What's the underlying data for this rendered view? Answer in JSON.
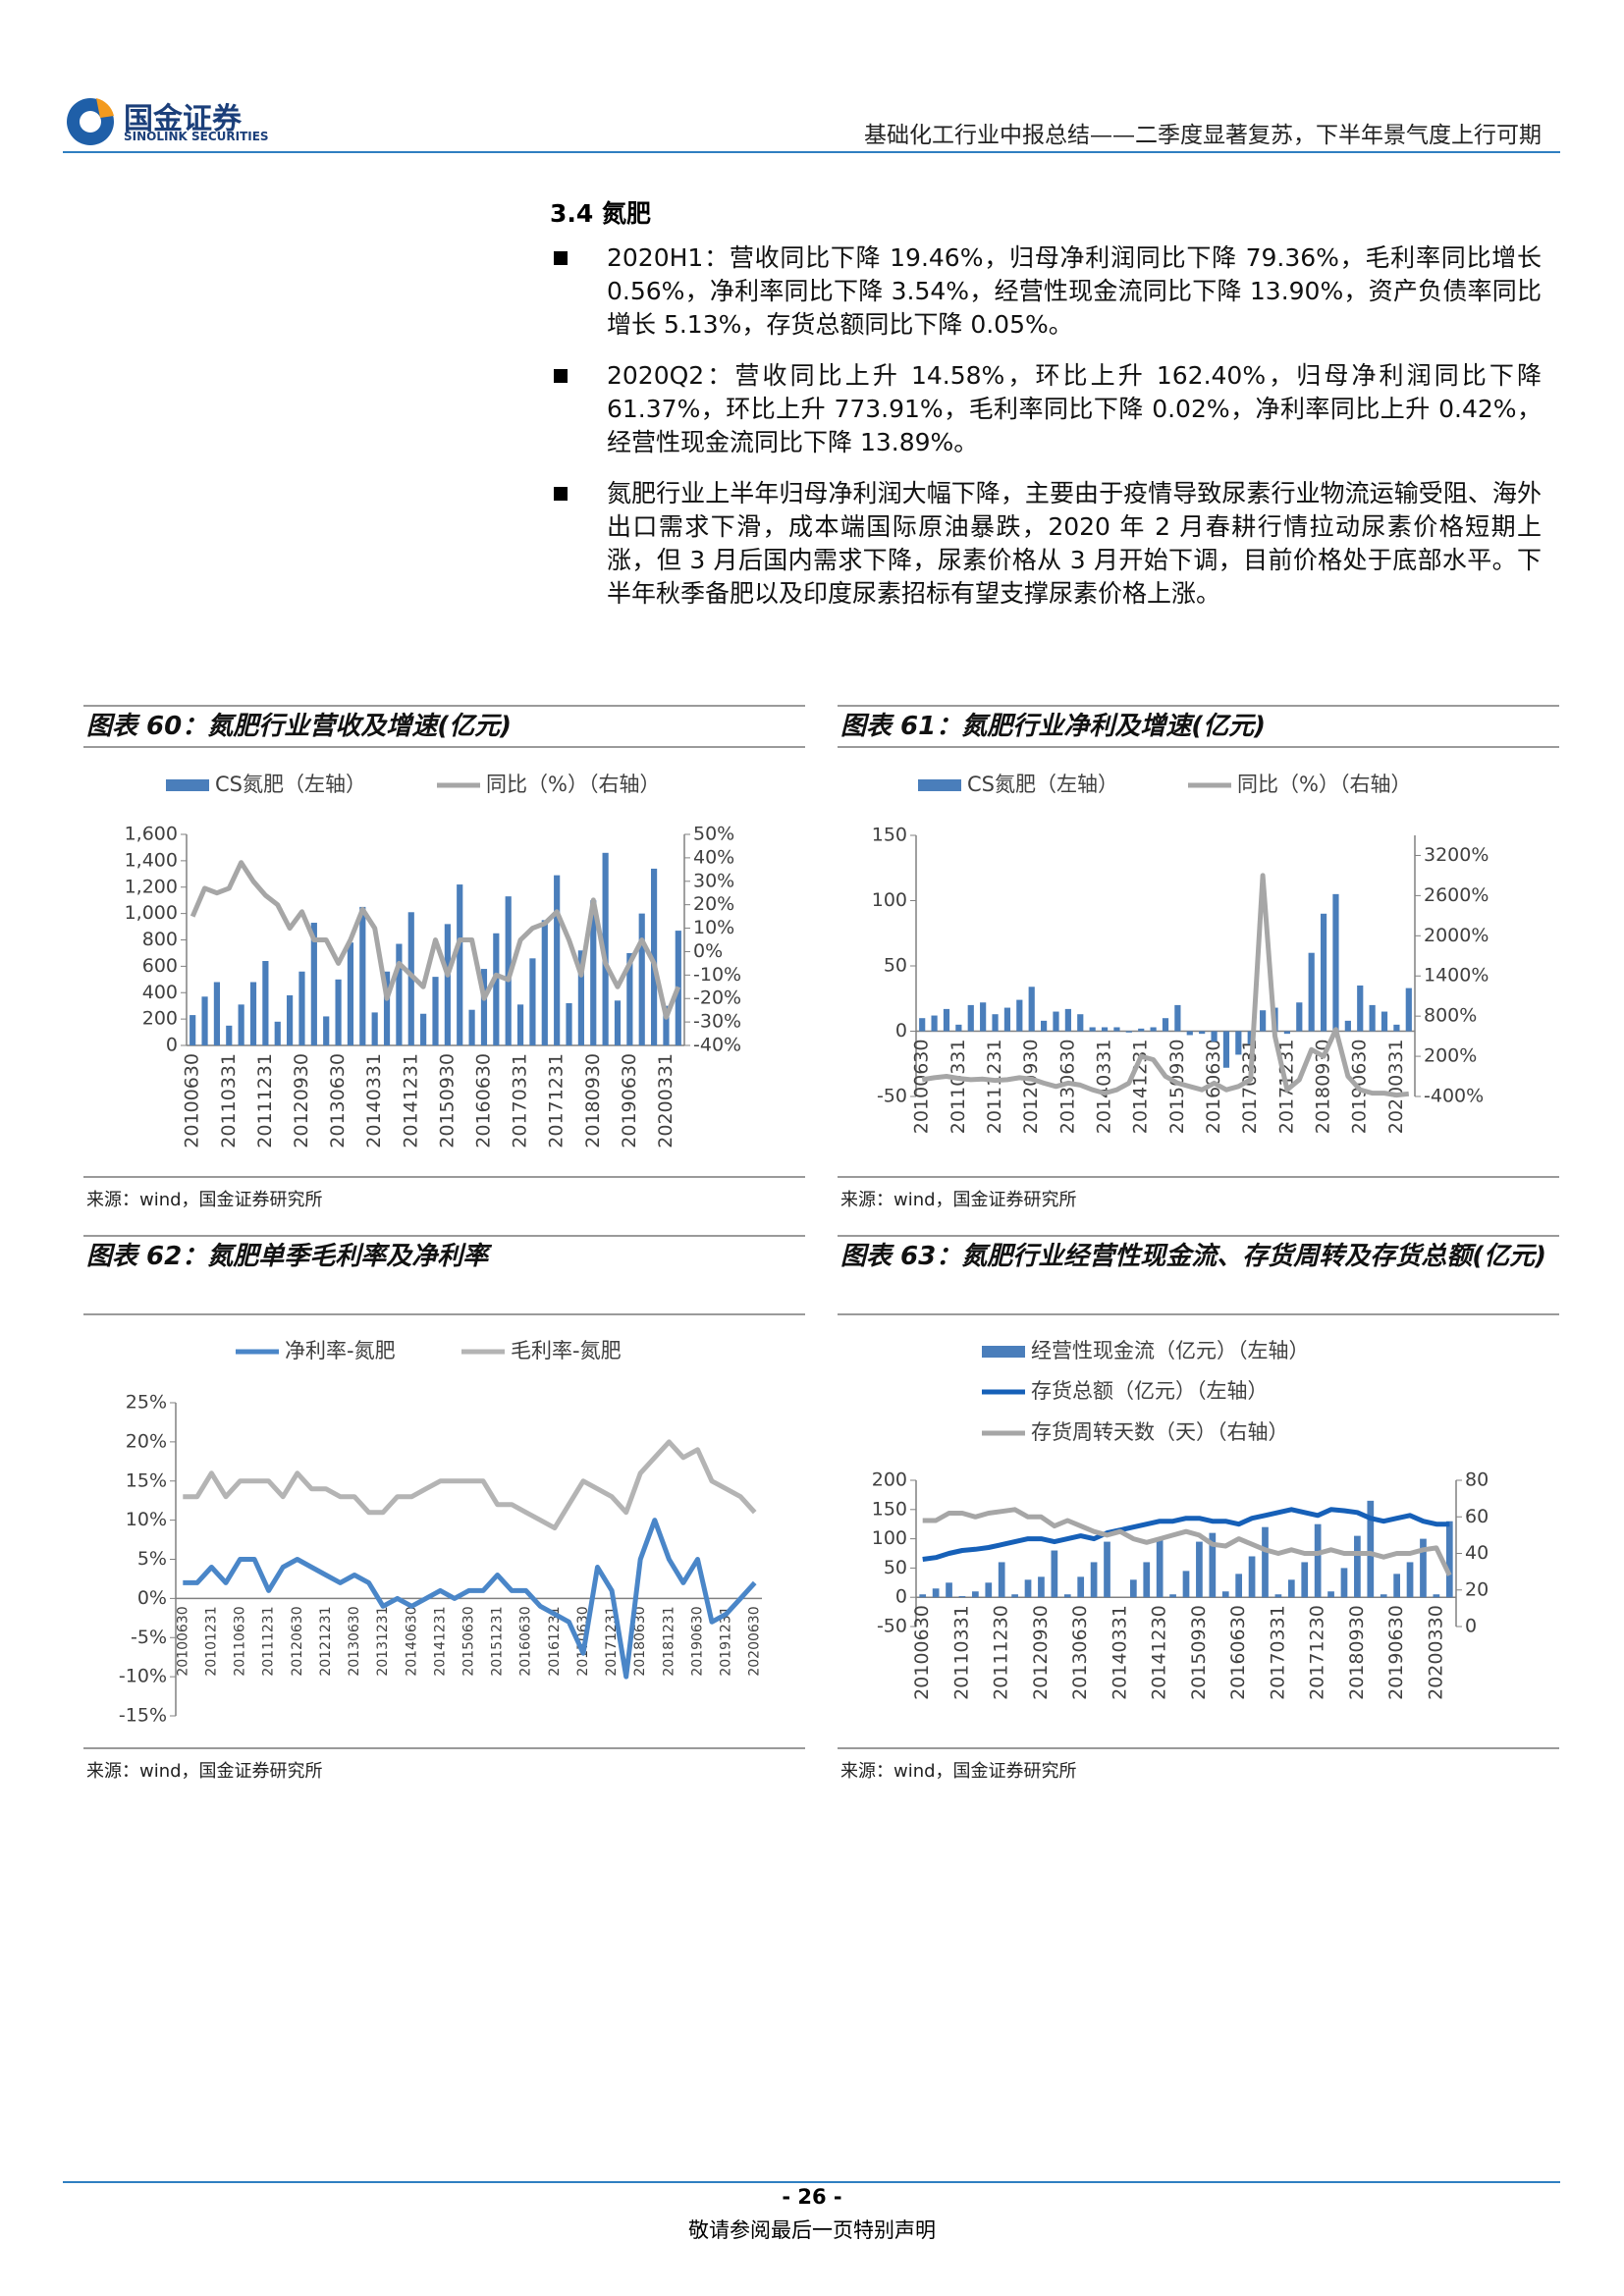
{
  "header": {
    "logo_cn": "国金证券",
    "logo_en": "SINOLINK SECURITIES",
    "title": "基础化工行业中报总结——二季度显著复苏，下半年景气度上行可期"
  },
  "section": "3.4 氮肥",
  "bullets": [
    "2020H1：营收同比下降 19.46%，归母净利润同比下降 79.36%，毛利率同比增长 0.56%，净利率同比下降 3.54%，经营性现金流同比下降 13.90%，资产负债率同比增长 5.13%，存货总额同比下降 0.05%。",
    "2020Q2：营收同比上升 14.58%，环比上升 162.40%，归母净利润同比下降 61.37%，环比上升 773.91%，毛利率同比下降 0.02%，净利率同比上升 0.42%，经营性现金流同比下降 13.89%。",
    "氮肥行业上半年归母净利润大幅下降，主要由于疫情导致尿素行业物流运输受阻、海外出口需求下滑，成本端国际原油暴跌，2020 年 2 月春耕行情拉动尿素价格短期上涨，但 3 月后国内需求下降，尿素价格从 3 月开始下调，目前价格处于底部水平。下半年秋季备肥以及印度尿素招标有望支撑尿素价格上涨。"
  ],
  "chart_data": [
    {
      "type": "combo",
      "title": "图表 60：氮肥行业营收及增速(亿元)",
      "source": "来源：wind，国金证券研究所",
      "categories": [
        "20100630",
        null,
        null,
        "20110331",
        null,
        null,
        "20111231",
        null,
        null,
        "20120930",
        null,
        null,
        "20130630",
        null,
        null,
        "20140331",
        null,
        null,
        "20141231",
        null,
        null,
        "20150930",
        null,
        null,
        "20160630",
        null,
        null,
        "20170331",
        null,
        null,
        "20171231",
        null,
        null,
        "20180930",
        null,
        null,
        "20190630",
        null,
        null,
        "20200331",
        null
      ],
      "ylim": [
        0,
        1600
      ],
      "yticks": [
        0,
        200,
        400,
        600,
        800,
        {
          "value": 1000,
          "label": "1,000"
        },
        {
          "value": 1200,
          "label": "1,200"
        },
        {
          "value": 1400,
          "label": "1,400"
        },
        {
          "value": 1600,
          "label": "1,600"
        }
      ],
      "y2lim": [
        -40,
        50
      ],
      "y2ticks": [
        {
          "value": -40,
          "label": "-40%"
        },
        {
          "value": -30,
          "label": "-30%"
        },
        {
          "value": -20,
          "label": "-20%"
        },
        {
          "value": -10,
          "label": "-10%"
        },
        {
          "value": 0,
          "label": "0%"
        },
        {
          "value": 10,
          "label": "10%"
        },
        {
          "value": 20,
          "label": "20%"
        },
        {
          "value": 30,
          "label": "30%"
        },
        {
          "value": 40,
          "label": "40%"
        },
        {
          "value": 50,
          "label": "50%"
        }
      ],
      "series": [
        {
          "name": "CS氮肥（左轴）",
          "type": "bar",
          "color": "#4a7ebb",
          "values": [
            230,
            370,
            480,
            150,
            310,
            480,
            640,
            180,
            380,
            560,
            930,
            220,
            500,
            780,
            1050,
            250,
            560,
            770,
            1010,
            240,
            520,
            920,
            1220,
            270,
            580,
            850,
            1130,
            310,
            660,
            950,
            1290,
            320,
            720,
            1100,
            1460,
            340,
            700,
            1000,
            1340,
            300,
            870
          ]
        },
        {
          "name": "同比（%）（右轴）",
          "type": "line",
          "axis": "y2",
          "color": "#a6a6a6",
          "values": [
            15,
            27,
            25,
            27,
            38,
            30,
            24,
            20,
            10,
            17,
            5,
            5,
            -5,
            5,
            18,
            10,
            -20,
            -5,
            -10,
            -15,
            5,
            -10,
            5,
            5,
            -20,
            -10,
            -12,
            5,
            10,
            12,
            17,
            5,
            -10,
            22,
            -5,
            -15,
            -5,
            5,
            -5,
            -28,
            -15
          ]
        }
      ]
    },
    {
      "type": "combo",
      "title": "图表 61：氮肥行业净利及增速(亿元)",
      "source": "来源：wind，国金证券研究所",
      "categories": [
        "20100630",
        null,
        null,
        "20110331",
        null,
        null,
        "20111231",
        null,
        null,
        "20120930",
        null,
        null,
        "20130630",
        null,
        null,
        "20140331",
        null,
        null,
        "20141231",
        null,
        null,
        "20150930",
        null,
        null,
        "20160630",
        null,
        null,
        "20170331",
        null,
        null,
        "20171231",
        null,
        null,
        "20180930",
        null,
        null,
        "20190630",
        null,
        null,
        "20200331",
        null
      ],
      "ylim": [
        -50,
        150
      ],
      "yticks": [
        -50,
        0,
        50,
        100,
        150
      ],
      "y2lim": [
        -400,
        3500
      ],
      "y2ticks": [
        {
          "value": -400,
          "label": "-400%"
        },
        {
          "value": 200,
          "label": "200%"
        },
        {
          "value": 800,
          "label": "800%"
        },
        {
          "value": 1400,
          "label": "1400%"
        },
        {
          "value": 2000,
          "label": "2000%"
        },
        {
          "value": 2600,
          "label": "2600%"
        },
        {
          "value": 3200,
          "label": "3200%"
        }
      ],
      "series": [
        {
          "name": "CS氮肥（左轴）",
          "type": "bar",
          "color": "#4a7ebb",
          "values": [
            10,
            12,
            17,
            5,
            20,
            22,
            13,
            18,
            24,
            34,
            8,
            15,
            17,
            13,
            3,
            3,
            3,
            -1,
            2,
            3,
            10,
            20,
            -3,
            -2,
            -8,
            -28,
            -18,
            -10,
            16,
            18,
            -2,
            22,
            60,
            90,
            105,
            8,
            35,
            20,
            15,
            5,
            33
          ]
        },
        {
          "name": "同比（%）（右轴）",
          "type": "line",
          "axis": "y2",
          "color": "#a6a6a6",
          "values": [
            -150,
            -120,
            -100,
            -130,
            -150,
            -140,
            -160,
            -150,
            -120,
            -140,
            -200,
            -250,
            -200,
            -230,
            -300,
            -350,
            -300,
            -200,
            200,
            150,
            -100,
            -200,
            -250,
            -300,
            -200,
            -300,
            -250,
            -150,
            2900,
            500,
            -300,
            -150,
            300,
            200,
            600,
            -100,
            -300,
            -350,
            -350,
            -380,
            -360
          ]
        }
      ]
    },
    {
      "type": "line",
      "title": "图表 62：氮肥单季毛利率及净利率",
      "source": "来源：wind，国金证券研究所",
      "categories": [
        "20100630",
        null,
        "20101231",
        null,
        "20110630",
        null,
        "20111231",
        null,
        "20120630",
        null,
        "20121231",
        null,
        "20130630",
        null,
        "20131231",
        null,
        "20140630",
        null,
        "20141231",
        null,
        "20150630",
        null,
        "20151231",
        null,
        "20160630",
        null,
        "20161231",
        null,
        "20170630",
        null,
        "20171231",
        null,
        "20180630",
        null,
        "20181231",
        null,
        "20190630",
        null,
        "20191231",
        null,
        "20200630"
      ],
      "ylim": [
        -15,
        25
      ],
      "yticks": [
        {
          "value": -15,
          "label": "-15%"
        },
        {
          "value": -10,
          "label": "-10%"
        },
        {
          "value": -5,
          "label": "-5%"
        },
        {
          "value": 0,
          "label": "0%"
        },
        {
          "value": 5,
          "label": "5%"
        },
        {
          "value": 10,
          "label": "10%"
        },
        {
          "value": 15,
          "label": "15%"
        },
        {
          "value": 20,
          "label": "20%"
        },
        {
          "value": 25,
          "label": "25%"
        }
      ],
      "series": [
        {
          "name": "净利率-氮肥",
          "type": "line",
          "color": "#4a86c8",
          "values": [
            2,
            2,
            4,
            2,
            5,
            5,
            1,
            4,
            5,
            4,
            3,
            2,
            3,
            2,
            -1,
            0,
            -1,
            0,
            1,
            0,
            1,
            1,
            3,
            1,
            1,
            -1,
            -2,
            -3,
            -7,
            4,
            1,
            -10,
            5,
            10,
            5,
            2,
            5,
            -3,
            -2,
            0,
            2
          ]
        },
        {
          "name": "毛利率-氮肥",
          "type": "line",
          "color": "#b4b4b4",
          "values": [
            13,
            13,
            16,
            13,
            15,
            15,
            15,
            13,
            16,
            14,
            14,
            13,
            13,
            11,
            11,
            13,
            13,
            14,
            15,
            15,
            15,
            15,
            12,
            12,
            11,
            10,
            9,
            12,
            15,
            14,
            13,
            11,
            16,
            18,
            20,
            18,
            19,
            15,
            14,
            13,
            11
          ]
        }
      ]
    },
    {
      "type": "combo",
      "title": "图表 63：氮肥行业经营性现金流、存货周转及存货总额(亿元)",
      "source": "来源：wind，国金证券研究所",
      "categories": [
        "20100630",
        null,
        null,
        "20110331",
        null,
        null,
        "20111230",
        null,
        null,
        "20120930",
        null,
        null,
        "20130630",
        null,
        null,
        "20140331",
        null,
        null,
        "20141230",
        null,
        null,
        "20150930",
        null,
        null,
        "20160630",
        null,
        null,
        "20170331",
        null,
        null,
        "20171230",
        null,
        null,
        "20180930",
        null,
        null,
        "20190630",
        null,
        null,
        "20200330",
        null
      ],
      "ylim": [
        -50,
        200
      ],
      "yticks": [
        -50,
        0,
        50,
        100,
        150,
        200
      ],
      "y2lim": [
        0,
        80
      ],
      "y2ticks": [
        0,
        20,
        40,
        60,
        80
      ],
      "series": [
        {
          "name": "经营性现金流（亿元）（左轴）",
          "type": "bar",
          "color": "#4a7ebb",
          "values": [
            5,
            15,
            25,
            2,
            10,
            25,
            60,
            5,
            30,
            35,
            80,
            5,
            35,
            60,
            95,
            0,
            30,
            60,
            100,
            5,
            45,
            95,
            110,
            10,
            40,
            70,
            120,
            5,
            30,
            60,
            125,
            10,
            50,
            105,
            165,
            5,
            40,
            60,
            100,
            5,
            130
          ]
        },
        {
          "name": "存货总额（亿元）（左轴）",
          "type": "line",
          "color": "#1660b8",
          "values": [
            65,
            68,
            75,
            80,
            82,
            85,
            90,
            95,
            100,
            100,
            95,
            100,
            105,
            100,
            110,
            115,
            120,
            125,
            130,
            130,
            135,
            135,
            130,
            130,
            125,
            135,
            140,
            145,
            150,
            145,
            140,
            150,
            148,
            145,
            135,
            130,
            135,
            140,
            130,
            125,
            125
          ]
        },
        {
          "name": "存货周转天数（天）（右轴）",
          "type": "line",
          "axis": "y2",
          "color": "#a6a6a6",
          "values": [
            58,
            58,
            62,
            62,
            60,
            62,
            63,
            64,
            60,
            60,
            55,
            58,
            55,
            52,
            50,
            52,
            48,
            46,
            48,
            50,
            52,
            50,
            45,
            44,
            48,
            45,
            42,
            40,
            42,
            40,
            40,
            42,
            40,
            40,
            40,
            38,
            40,
            40,
            42,
            43,
            28
          ]
        }
      ]
    }
  ],
  "footer": {
    "page": "- 26 -",
    "notice": "敬请参阅最后一页特别声明"
  }
}
